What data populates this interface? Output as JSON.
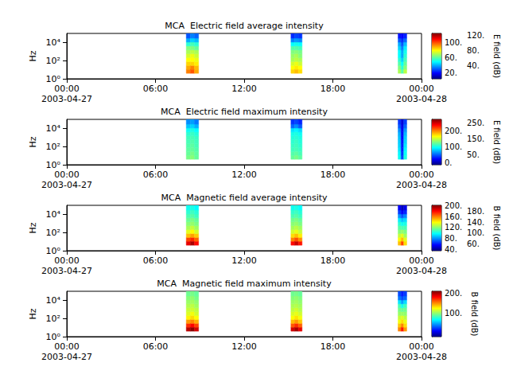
{
  "chart_data": [
    {
      "type": "heatmap",
      "title": "MCA  Electric field average intensity",
      "ylabel": "Hz",
      "xlim": [
        "2003-04-27 00:00",
        "2003-04-28 00:00"
      ],
      "xticks": [
        {
          "value": "2003-04-27 00:00",
          "label": "00:00\n2003-04-27"
        },
        {
          "value": "2003-04-27 06:00",
          "label": "06:00"
        },
        {
          "value": "2003-04-27 12:00",
          "label": "12:00"
        },
        {
          "value": "2003-04-27 18:00",
          "label": "18:00"
        },
        {
          "value": "2003-04-28 00:00",
          "label": "00:00\n2003-04-28"
        }
      ],
      "ylim": [
        1,
        100000
      ],
      "yticks": [
        {
          "value": 1,
          "label": "10⁰"
        },
        {
          "value": 100,
          "label": "10²"
        },
        {
          "value": 10000,
          "label": "10⁴"
        }
      ],
      "log": "y",
      "grid": false,
      "time_start": [
        "2003-04-27 08:05",
        "2003-04-27 08:22",
        "2003-04-27 08:38",
        "2003-04-27 15:10",
        "2003-04-27 15:25",
        "2003-04-27 15:40",
        "2003-04-27 22:25",
        "2003-04-27 22:37",
        "2003-04-27 22:48"
      ],
      "time_end": [
        "2003-04-27 08:22",
        "2003-04-27 08:38",
        "2003-04-27 08:55",
        "2003-04-27 15:25",
        "2003-04-27 15:40",
        "2003-04-27 15:55",
        "2003-04-27 22:37",
        "2003-04-27 22:48",
        "2003-04-27 23:00"
      ],
      "freq_bins": [
        4,
        11,
        29,
        78,
        210,
        570,
        1500,
        4100,
        11000,
        30000,
        100000
      ],
      "cells": [
        [
          95,
          90,
          85,
          80,
          75,
          70,
          65,
          55,
          40,
          30
        ],
        [
          100,
          95,
          85,
          80,
          78,
          72,
          65,
          58,
          45,
          35
        ],
        [
          90,
          88,
          82,
          78,
          74,
          70,
          62,
          55,
          42,
          32
        ],
        [
          85,
          80,
          75,
          70,
          68,
          65,
          60,
          50,
          35,
          25
        ],
        [
          88,
          82,
          78,
          72,
          70,
          66,
          60,
          52,
          38,
          28
        ],
        [
          84,
          80,
          74,
          70,
          66,
          64,
          58,
          50,
          36,
          26
        ],
        [
          70,
          65,
          60,
          55,
          50,
          50,
          45,
          40,
          30,
          22
        ],
        [
          60,
          55,
          50,
          45,
          40,
          40,
          35,
          30,
          25,
          20
        ],
        [
          72,
          66,
          62,
          58,
          55,
          52,
          48,
          42,
          32,
          24
        ]
      ],
      "colorbar": {
        "label": "E field (dB)",
        "range": [
          5,
          125
        ],
        "ticks": [
          {
            "value": 20,
            "label": "20."
          },
          {
            "value": 40,
            "label": "40."
          },
          {
            "value": 60,
            "label": "60."
          },
          {
            "value": 80,
            "label": "80."
          },
          {
            "value": 100,
            "label": "100."
          },
          {
            "value": 120,
            "label": "120."
          }
        ]
      }
    },
    {
      "type": "heatmap",
      "title": "MCA  Electric field maximum intensity",
      "ylabel": "Hz",
      "xlim": [
        "2003-04-27 00:00",
        "2003-04-28 00:00"
      ],
      "xticks": [
        {
          "value": "2003-04-27 00:00",
          "label": "00:00\n2003-04-27"
        },
        {
          "value": "2003-04-27 06:00",
          "label": "06:00"
        },
        {
          "value": "2003-04-27 12:00",
          "label": "12:00"
        },
        {
          "value": "2003-04-27 18:00",
          "label": "18:00"
        },
        {
          "value": "2003-04-28 00:00",
          "label": "00:00\n2003-04-28"
        }
      ],
      "ylim": [
        1,
        100000
      ],
      "yticks": [
        {
          "value": 1,
          "label": "10⁰"
        },
        {
          "value": 100,
          "label": "10²"
        },
        {
          "value": 10000,
          "label": "10⁴"
        }
      ],
      "log": "y",
      "grid": false,
      "time_start": [
        "2003-04-27 08:05",
        "2003-04-27 08:22",
        "2003-04-27 08:38",
        "2003-04-27 15:10",
        "2003-04-27 15:25",
        "2003-04-27 15:40",
        "2003-04-27 22:25",
        "2003-04-27 22:37",
        "2003-04-27 22:48"
      ],
      "time_end": [
        "2003-04-27 08:22",
        "2003-04-27 08:38",
        "2003-04-27 08:55",
        "2003-04-27 15:25",
        "2003-04-27 15:40",
        "2003-04-27 15:55",
        "2003-04-27 22:37",
        "2003-04-27 22:48",
        "2003-04-27 23:00"
      ],
      "freq_bins": [
        4,
        11,
        29,
        78,
        210,
        570,
        1500,
        4100,
        11000,
        30000,
        100000
      ],
      "cells": [
        [
          125,
          120,
          118,
          115,
          112,
          110,
          105,
          95,
          75,
          60
        ],
        [
          130,
          125,
          120,
          118,
          115,
          112,
          108,
          100,
          80,
          65
        ],
        [
          120,
          118,
          115,
          112,
          110,
          108,
          102,
          92,
          70,
          55
        ],
        [
          120,
          115,
          110,
          108,
          105,
          102,
          98,
          85,
          50,
          35
        ],
        [
          125,
          118,
          112,
          110,
          108,
          104,
          100,
          90,
          60,
          40
        ],
        [
          118,
          112,
          108,
          105,
          102,
          100,
          95,
          82,
          45,
          30
        ],
        [
          95,
          90,
          85,
          80,
          78,
          75,
          70,
          60,
          45,
          35
        ],
        [
          40,
          35,
          30,
          28,
          25,
          22,
          20,
          18,
          15,
          10
        ],
        [
          100,
          95,
          90,
          85,
          80,
          78,
          72,
          62,
          48,
          38
        ]
      ],
      "colorbar": {
        "label": "E field (dB)",
        "range": [
          -15,
          270
        ],
        "ticks": [
          {
            "value": 0,
            "label": "0."
          },
          {
            "value": 50,
            "label": "50."
          },
          {
            "value": 100,
            "label": "100."
          },
          {
            "value": 150,
            "label": "150."
          },
          {
            "value": 200,
            "label": "200."
          },
          {
            "value": 250,
            "label": "250."
          }
        ]
      }
    },
    {
      "type": "heatmap",
      "title": "MCA  Magnetic field average intensity",
      "ylabel": "Hz",
      "xlim": [
        "2003-04-27 00:00",
        "2003-04-28 00:00"
      ],
      "xticks": [
        {
          "value": "2003-04-27 00:00",
          "label": "00:00\n2003-04-27"
        },
        {
          "value": "2003-04-27 06:00",
          "label": "06:00"
        },
        {
          "value": "2003-04-27 12:00",
          "label": "12:00"
        },
        {
          "value": "2003-04-27 18:00",
          "label": "18:00"
        },
        {
          "value": "2003-04-28 00:00",
          "label": "00:00\n2003-04-28"
        }
      ],
      "ylim": [
        1,
        100000
      ],
      "yticks": [
        {
          "value": 1,
          "label": "10⁰"
        },
        {
          "value": 100,
          "label": "10²"
        },
        {
          "value": 10000,
          "label": "10⁴"
        }
      ],
      "log": "y",
      "grid": false,
      "time_start": [
        "2003-04-27 08:05",
        "2003-04-27 08:22",
        "2003-04-27 08:38",
        "2003-04-27 15:10",
        "2003-04-27 15:25",
        "2003-04-27 15:40",
        "2003-04-27 22:25",
        "2003-04-27 22:37",
        "2003-04-27 22:48"
      ],
      "time_end": [
        "2003-04-27 08:22",
        "2003-04-27 08:38",
        "2003-04-27 08:55",
        "2003-04-27 15:25",
        "2003-04-27 15:40",
        "2003-04-27 15:55",
        "2003-04-27 22:37",
        "2003-04-27 22:48",
        "2003-04-27 23:00"
      ],
      "freq_bins": [
        4,
        11,
        29,
        78,
        210,
        570,
        1500,
        4100,
        11000,
        30000,
        100000
      ],
      "cells": [
        [
          185,
          170,
          150,
          135,
          125,
          120,
          115,
          110,
          105,
          100
        ],
        [
          195,
          175,
          155,
          140,
          130,
          122,
          118,
          112,
          108,
          102
        ],
        [
          180,
          165,
          148,
          132,
          124,
          118,
          114,
          108,
          104,
          98
        ],
        [
          180,
          160,
          145,
          132,
          125,
          120,
          116,
          110,
          106,
          100
        ],
        [
          190,
          168,
          150,
          136,
          128,
          122,
          118,
          112,
          108,
          102
        ],
        [
          178,
          158,
          142,
          130,
          124,
          118,
          114,
          108,
          104,
          98
        ],
        [
          150,
          140,
          130,
          120,
          112,
          105,
          95,
          80,
          65,
          55
        ],
        [
          170,
          150,
          135,
          122,
          110,
          100,
          88,
          70,
          55,
          45
        ],
        [
          145,
          135,
          125,
          118,
          110,
          102,
          92,
          78,
          62,
          52
        ]
      ],
      "colorbar": {
        "label": "B field (dB)",
        "range": [
          35,
          202
        ],
        "ticks": [
          {
            "value": 40,
            "label": "40."
          },
          {
            "value": 60,
            "label": "60."
          },
          {
            "value": 80,
            "label": "80."
          },
          {
            "value": 100,
            "label": "100."
          },
          {
            "value": 120,
            "label": "120."
          },
          {
            "value": 140,
            "label": "140."
          },
          {
            "value": 160,
            "label": "160."
          },
          {
            "value": 180,
            "label": "180."
          },
          {
            "value": 200,
            "label": "200."
          }
        ]
      }
    },
    {
      "type": "heatmap",
      "title": "MCA  Magnetic field maximum intensity",
      "ylabel": "Hz",
      "xlim": [
        "2003-04-27 00:00",
        "2003-04-28 00:00"
      ],
      "xticks": [
        {
          "value": "2003-04-27 00:00",
          "label": "00:00\n2003-04-27"
        },
        {
          "value": "2003-04-27 06:00",
          "label": "06:00"
        },
        {
          "value": "2003-04-27 12:00",
          "label": "12:00"
        },
        {
          "value": "2003-04-27 18:00",
          "label": "18:00"
        },
        {
          "value": "2003-04-28 00:00",
          "label": "00:00\n2003-04-28"
        }
      ],
      "ylim": [
        1,
        100000
      ],
      "yticks": [
        {
          "value": 1,
          "label": "10⁰"
        },
        {
          "value": 100,
          "label": "10²"
        },
        {
          "value": 10000,
          "label": "10⁴"
        }
      ],
      "log": "y",
      "grid": false,
      "time_start": [
        "2003-04-27 08:05",
        "2003-04-27 08:22",
        "2003-04-27 08:38",
        "2003-04-27 15:10",
        "2003-04-27 15:25",
        "2003-04-27 15:40",
        "2003-04-27 22:25",
        "2003-04-27 22:37",
        "2003-04-27 22:48"
      ],
      "time_end": [
        "2003-04-27 08:22",
        "2003-04-27 08:38",
        "2003-04-27 08:55",
        "2003-04-27 15:25",
        "2003-04-27 15:40",
        "2003-04-27 15:55",
        "2003-04-27 22:37",
        "2003-04-27 22:48",
        "2003-04-27 23:00"
      ],
      "freq_bins": [
        4,
        11,
        29,
        78,
        210,
        570,
        1500,
        4100,
        11000,
        30000,
        100000
      ],
      "cells": [
        [
          195,
          170,
          145,
          125,
          115,
          110,
          105,
          100,
          95,
          90
        ],
        [
          205,
          180,
          150,
          130,
          120,
          112,
          108,
          102,
          98,
          92
        ],
        [
          190,
          165,
          140,
          122,
          112,
          108,
          102,
          98,
          92,
          88
        ],
        [
          190,
          160,
          138,
          122,
          114,
          108,
          104,
          100,
          95,
          90
        ],
        [
          200,
          170,
          145,
          128,
          118,
          112,
          106,
          102,
          98,
          92
        ],
        [
          185,
          158,
          135,
          120,
          112,
          106,
          102,
          98,
          94,
          88
        ],
        [
          150,
          135,
          120,
          110,
          100,
          92,
          82,
          60,
          35,
          25
        ],
        [
          175,
          150,
          130,
          115,
          100,
          88,
          70,
          45,
          25,
          15
        ],
        [
          145,
          130,
          118,
          108,
          98,
          90,
          80,
          58,
          32,
          22
        ]
      ],
      "colorbar": {
        "label": "B field (dB)",
        "range": [
          -20,
          208
        ],
        "ticks": [
          {
            "value": 100,
            "label": "100."
          },
          {
            "value": 200,
            "label": "200."
          }
        ]
      }
    }
  ]
}
